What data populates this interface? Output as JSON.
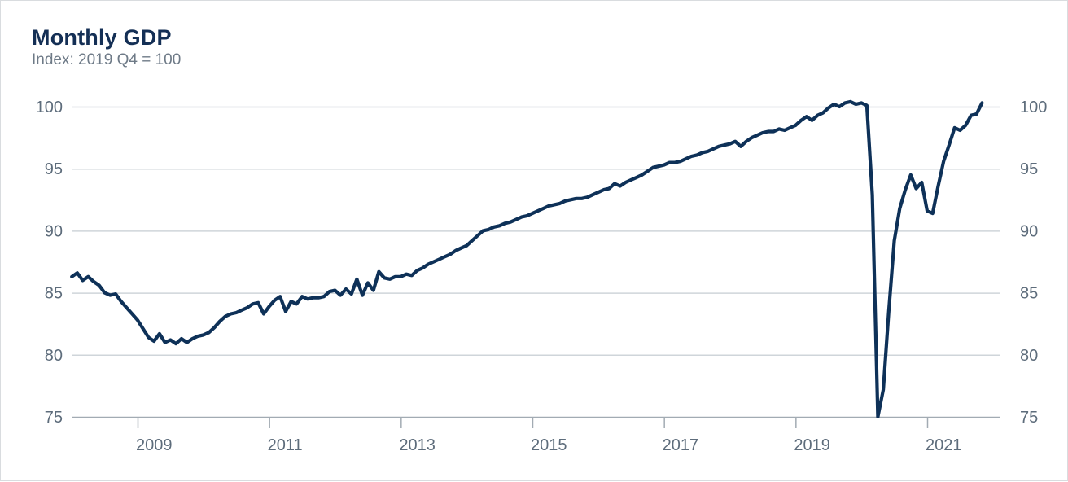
{
  "chart_data": {
    "type": "line",
    "title": "Monthly GDP",
    "subtitle": "Index: 2019 Q4 = 100",
    "frequency": "monthly",
    "x_start_month": "2008-01",
    "x_end_month": "2021-11",
    "x_tick_years": [
      2009,
      2011,
      2013,
      2015,
      2017,
      2019,
      2021
    ],
    "y_ticks": [
      100,
      95,
      90,
      85,
      80,
      75
    ],
    "ylim": [
      75,
      100.5
    ],
    "grid": "horizontal",
    "y_axis": "both-sides",
    "legend": "none",
    "series": [
      {
        "name": "Monthly GDP index (2019 Q4 = 100)",
        "values": [
          86.3,
          86.6,
          86.0,
          86.3,
          85.9,
          85.6,
          85.0,
          84.8,
          84.9,
          84.3,
          83.8,
          83.3,
          82.8,
          82.1,
          81.4,
          81.1,
          81.7,
          81.0,
          81.2,
          80.9,
          81.3,
          81.0,
          81.3,
          81.5,
          81.6,
          81.8,
          82.2,
          82.7,
          83.1,
          83.3,
          83.4,
          83.6,
          83.8,
          84.1,
          84.2,
          83.3,
          83.9,
          84.4,
          84.7,
          83.5,
          84.3,
          84.1,
          84.7,
          84.5,
          84.6,
          84.6,
          84.7,
          85.1,
          85.2,
          84.8,
          85.3,
          84.9,
          86.1,
          84.8,
          85.8,
          85.2,
          86.7,
          86.2,
          86.1,
          86.3,
          86.3,
          86.5,
          86.4,
          86.8,
          87.0,
          87.3,
          87.5,
          87.7,
          87.9,
          88.1,
          88.4,
          88.6,
          88.8,
          89.2,
          89.6,
          90.0,
          90.1,
          90.3,
          90.4,
          90.6,
          90.7,
          90.9,
          91.1,
          91.2,
          91.4,
          91.6,
          91.8,
          92.0,
          92.1,
          92.2,
          92.4,
          92.5,
          92.6,
          92.6,
          92.7,
          92.9,
          93.1,
          93.3,
          93.4,
          93.8,
          93.6,
          93.9,
          94.1,
          94.3,
          94.5,
          94.8,
          95.1,
          95.2,
          95.3,
          95.5,
          95.5,
          95.6,
          95.8,
          96.0,
          96.1,
          96.3,
          96.4,
          96.6,
          96.8,
          96.9,
          97.0,
          97.2,
          96.8,
          97.2,
          97.5,
          97.7,
          97.9,
          98.0,
          98.0,
          98.2,
          98.1,
          98.3,
          98.5,
          98.9,
          99.2,
          98.9,
          99.3,
          99.5,
          99.9,
          100.2,
          100.0,
          100.3,
          100.4,
          100.2,
          100.3,
          100.1,
          92.9,
          75.0,
          77.2,
          83.5,
          89.2,
          91.8,
          93.3,
          94.5,
          93.4,
          93.9,
          91.6,
          91.4,
          93.6,
          95.6,
          96.9,
          98.3,
          98.1,
          98.5,
          99.3,
          99.4,
          100.3
        ]
      }
    ],
    "colors": {
      "line": "#0e3158",
      "gridline": "#cfd5da",
      "axis": "#a2abb3",
      "tick_labels": "#5d6c7b",
      "title": "#142f55",
      "subtitle": "#6e7a87",
      "border": "#d9dcdf",
      "background": "#ffffff"
    }
  }
}
